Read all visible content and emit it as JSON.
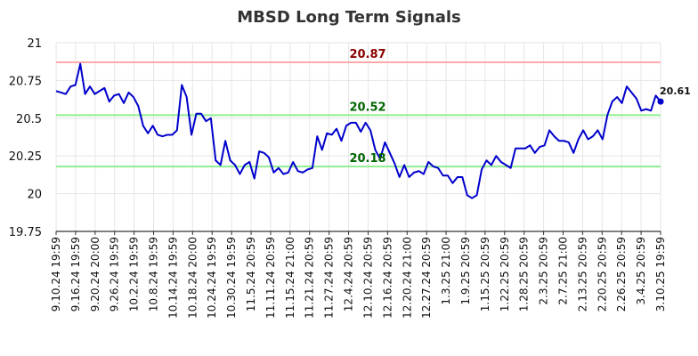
{
  "chart_data": {
    "type": "line",
    "title": "MBSD Long Term Signals",
    "xlabel": "",
    "ylabel": "",
    "ylim": [
      19.75,
      21
    ],
    "yticks": [
      "19.75",
      "20",
      "20.25",
      "20.5",
      "20.75",
      "21"
    ],
    "grid": true,
    "x_tick_labels": [
      "9.10.24 19:59",
      "9.16.24 19:59",
      "9.20.24 20:00",
      "9.26.24 19:59",
      "10.2.24 19:59",
      "10.8.24 19:59",
      "10.14.24 19:59",
      "10.18.24 20:00",
      "10.24.24 19:59",
      "10.30.24 19:59",
      "11.5.24 20:59",
      "11.11.24 20:59",
      "11.15.24 21:00",
      "11.21.24 20:59",
      "11.27.24 20:59",
      "12.4.24 20:59",
      "12.10.24 20:59",
      "12.16.24 20:59",
      "12.20.24 21:00",
      "12.27.24 20:59",
      "1.3.25 21:00",
      "1.9.25 20:59",
      "1.15.25 20:59",
      "1.22.25 20:59",
      "1.28.25 20:59",
      "2.3.25 20:59",
      "2.7.25 21:00",
      "2.13.25 20:59",
      "2.20.25 20:59",
      "2.26.25 20:59",
      "3.4.25 20:59",
      "3.10.25 19:59"
    ],
    "series": [
      {
        "color": "#0000cc",
        "values": [
          20.68,
          20.67,
          20.66,
          20.71,
          20.72,
          20.86,
          20.66,
          20.71,
          20.66,
          20.68,
          20.7,
          20.61,
          20.65,
          20.66,
          20.6,
          20.67,
          20.64,
          20.58,
          20.45,
          20.4,
          20.45,
          20.39,
          20.38,
          20.39,
          20.39,
          20.42,
          20.72,
          20.64,
          20.39,
          20.53,
          20.53,
          20.48,
          20.5,
          20.22,
          20.19,
          20.35,
          20.22,
          20.19,
          20.13,
          20.19,
          20.21,
          20.1,
          20.28,
          20.27,
          20.24,
          20.14,
          20.17,
          20.13,
          20.14,
          20.21,
          20.15,
          20.14,
          20.16,
          20.17,
          20.38,
          20.29,
          20.4,
          20.39,
          20.43,
          20.35,
          20.45,
          20.47,
          20.47,
          20.41,
          20.47,
          20.42,
          20.29,
          20.23,
          20.34,
          20.27,
          20.2,
          20.11,
          20.19,
          20.11,
          20.14,
          20.15,
          20.13,
          20.21,
          20.18,
          20.17,
          20.12,
          20.12,
          20.07,
          20.11,
          20.11,
          19.99,
          19.97,
          19.99,
          20.16,
          20.22,
          20.19,
          20.25,
          20.21,
          20.19,
          20.17,
          20.3,
          20.3,
          20.3,
          20.32,
          20.27,
          20.31,
          20.32,
          20.42,
          20.38,
          20.35,
          20.35,
          20.34,
          20.27,
          20.36,
          20.42,
          20.36,
          20.38,
          20.42,
          20.36,
          20.52,
          20.61,
          20.64,
          20.6,
          20.71,
          20.67,
          20.63,
          20.55,
          20.56,
          20.55,
          20.65,
          20.61
        ]
      }
    ],
    "reference_lines": [
      {
        "value": 20.87,
        "label": "20.87",
        "line_color": "#ffaaaa",
        "label_color": "#8b0000"
      },
      {
        "value": 20.52,
        "label": "20.52",
        "line_color": "#90ee90",
        "label_color": "#006400"
      },
      {
        "value": 20.18,
        "label": "20.18",
        "line_color": "#90ee90",
        "label_color": "#006400"
      }
    ],
    "last_value_label": "20.61"
  }
}
